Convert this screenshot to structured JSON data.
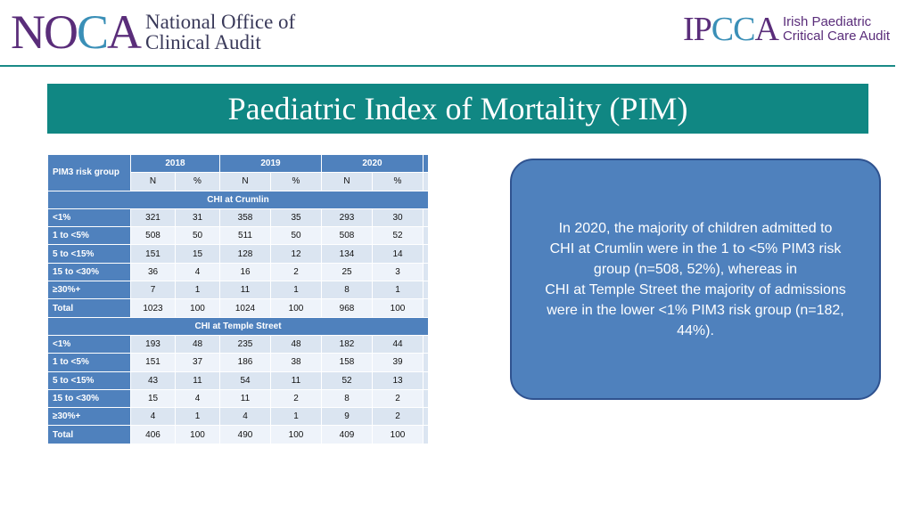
{
  "header": {
    "noca_logo": {
      "mark": "NOCA",
      "line1": "National Office of",
      "line2": "Clinical Audit"
    },
    "ipcca_logo": {
      "mark": "IPCCA",
      "line1": "Irish Paediatric",
      "line2": "Critical Care Audit"
    }
  },
  "title": "Paediatric Index of Mortality (PIM)",
  "table": {
    "group_header": "PIM3 risk group",
    "years": [
      "2018",
      "2019",
      "2020"
    ],
    "subheaders": [
      "N",
      "%",
      "N",
      "%",
      "N",
      "%"
    ],
    "sections": [
      {
        "name": "CHI at Crumlin",
        "rows": [
          {
            "label": "<1%",
            "values": [
              "321",
              "31",
              "358",
              "35",
              "293",
              "30"
            ]
          },
          {
            "label": "1 to <5%",
            "values": [
              "508",
              "50",
              "511",
              "50",
              "508",
              "52"
            ]
          },
          {
            "label": "5 to <15%",
            "values": [
              "151",
              "15",
              "128",
              "12",
              "134",
              "14"
            ]
          },
          {
            "label": "15 to <30%",
            "values": [
              "36",
              "4",
              "16",
              "2",
              "25",
              "3"
            ]
          },
          {
            "label": "≥30%+",
            "values": [
              "7",
              "1",
              "11",
              "1",
              "8",
              "1"
            ]
          },
          {
            "label": "Total",
            "values": [
              "1023",
              "100",
              "1024",
              "100",
              "968",
              "100"
            ]
          }
        ]
      },
      {
        "name": "CHI at Temple Street",
        "rows": [
          {
            "label": "<1%",
            "values": [
              "193",
              "48",
              "235",
              "48",
              "182",
              "44"
            ]
          },
          {
            "label": "1 to <5%",
            "values": [
              "151",
              "37",
              "186",
              "38",
              "158",
              "39"
            ]
          },
          {
            "label": "5 to <15%",
            "values": [
              "43",
              "11",
              "54",
              "11",
              "52",
              "13"
            ]
          },
          {
            "label": "15 to <30%",
            "values": [
              "15",
              "4",
              "11",
              "2",
              "8",
              "2"
            ]
          },
          {
            "label": "≥30%+",
            "values": [
              "4",
              "1",
              "4",
              "1",
              "9",
              "2"
            ]
          },
          {
            "label": "Total",
            "values": [
              "406",
              "100",
              "490",
              "100",
              "409",
              "100"
            ]
          }
        ]
      }
    ]
  },
  "callout": {
    "text": "In 2020, the majority of children admitted to\nCHI at Crumlin were in the 1 to <5% PIM3 risk\ngroup (n=508, 52%), whereas in\nCHI at Temple Street the majority of admissions\nwere in the lower <1% PIM3 risk group (n=182,\n44%)."
  },
  "colors": {
    "teal": "#108783",
    "table_blue": "#4f81bd",
    "table_light": "#dbe5f1",
    "callout_border": "#2f528f",
    "noca_purple": "#5a2d7a"
  }
}
